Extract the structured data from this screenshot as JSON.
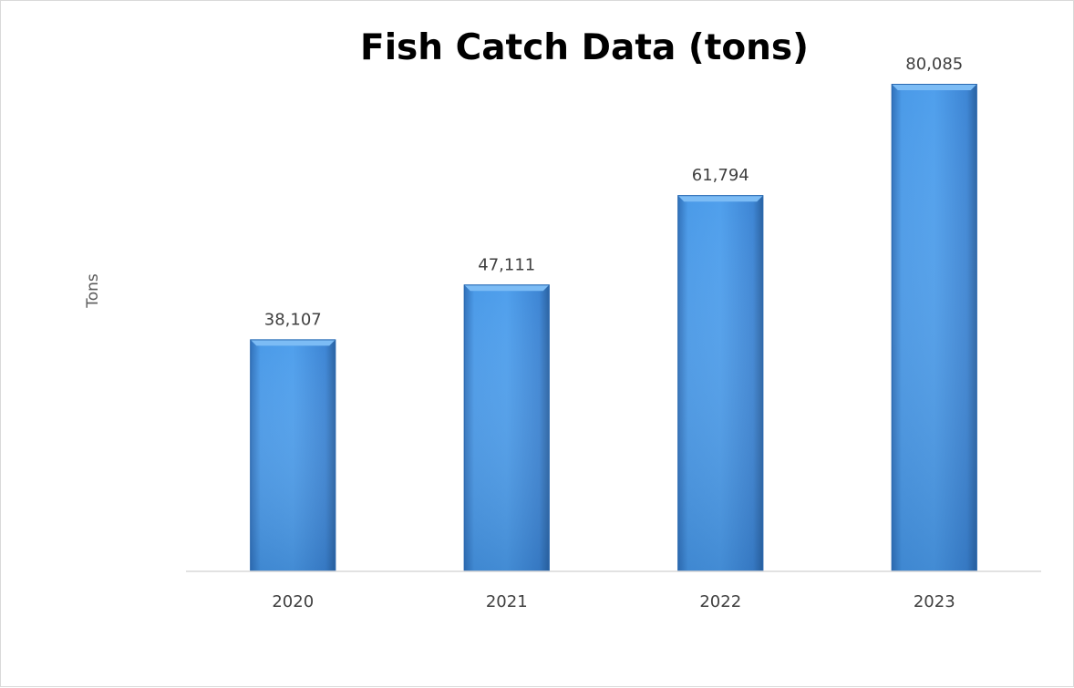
{
  "chart_data": {
    "type": "bar",
    "title": "Fish Catch Data (tons)",
    "xlabel": "",
    "ylabel": "Tons",
    "categories": [
      "2020",
      "2021",
      "2022",
      "2023"
    ],
    "values": [
      38107,
      47111,
      61794,
      80085
    ],
    "data_labels": [
      "38,107",
      "47,111",
      "61,794",
      "80,085"
    ],
    "ylim": [
      0,
      90000
    ],
    "grid": false,
    "legend": "none",
    "bar_color": "#3f8fe0",
    "bar_highlight": "#7cbcf5",
    "bar_shadow": "#2a69b0"
  }
}
